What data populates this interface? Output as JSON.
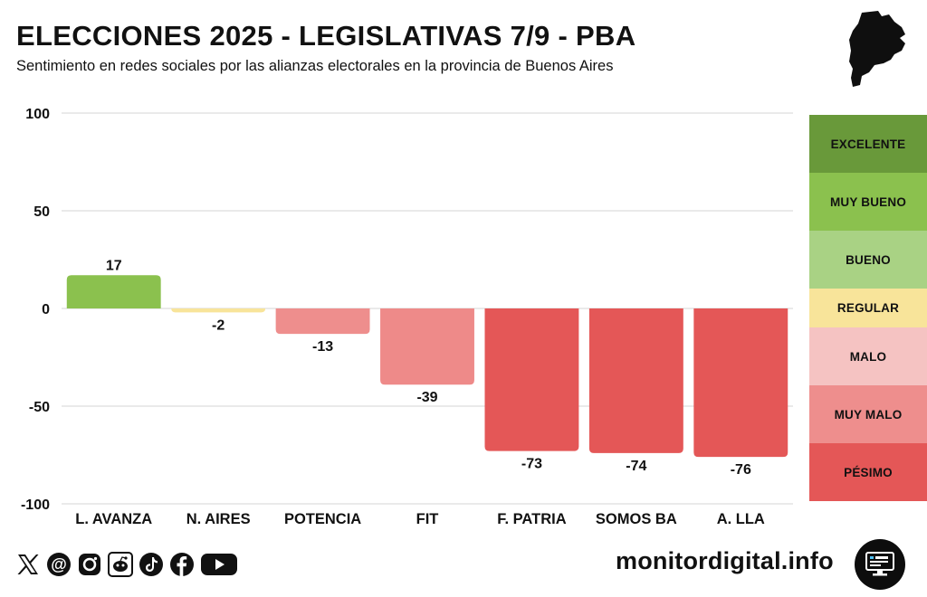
{
  "header": {
    "title": "ELECCIONES 2025 - LEGISLATIVAS 7/9 - PBA",
    "subtitle": "Sentimiento en redes sociales por las alianzas electorales en la provincia de Buenos Aires"
  },
  "chart_data": {
    "type": "bar",
    "title": "ELECCIONES 2025 - LEGISLATIVAS 7/9 - PBA",
    "xlabel": "",
    "ylabel": "",
    "ylim": [
      -100,
      100
    ],
    "yticks": [
      100,
      50,
      0,
      -50,
      -100
    ],
    "categories": [
      "L. AVANZA",
      "N. AIRES",
      "POTENCIA",
      "FIT",
      "F. PATRIA",
      "SOMOS BA",
      "A. LLA"
    ],
    "values": [
      17,
      -2,
      -13,
      -39,
      -73,
      -74,
      -76
    ],
    "data_labels": [
      "17",
      "-2",
      "-13",
      "-39",
      "-73",
      "-74",
      "-76"
    ],
    "colors": [
      "#8BC14E",
      "#F8E49A",
      "#EE8E8D",
      "#EE8A89",
      "#E45757",
      "#E45757",
      "#E45757"
    ],
    "grid": true
  },
  "legend": {
    "items": [
      {
        "label": "EXCELENTE",
        "color": "#69993A"
      },
      {
        "label": "MUY BUENO",
        "color": "#8BC14E"
      },
      {
        "label": "BUENO",
        "color": "#A9D284"
      },
      {
        "label": "REGULAR",
        "color": "#F8E49A"
      },
      {
        "label": "MALO",
        "color": "#F5C3C2"
      },
      {
        "label": "MUY MALO",
        "color": "#EE8E8D"
      },
      {
        "label": "PÉSIMO",
        "color": "#E45757"
      }
    ]
  },
  "footer": {
    "site": "monitordigital.info",
    "social_icons": [
      "x-icon",
      "threads-icon",
      "instagram-icon",
      "reddit-icon",
      "tiktok-icon",
      "facebook-icon",
      "youtube-icon"
    ]
  }
}
